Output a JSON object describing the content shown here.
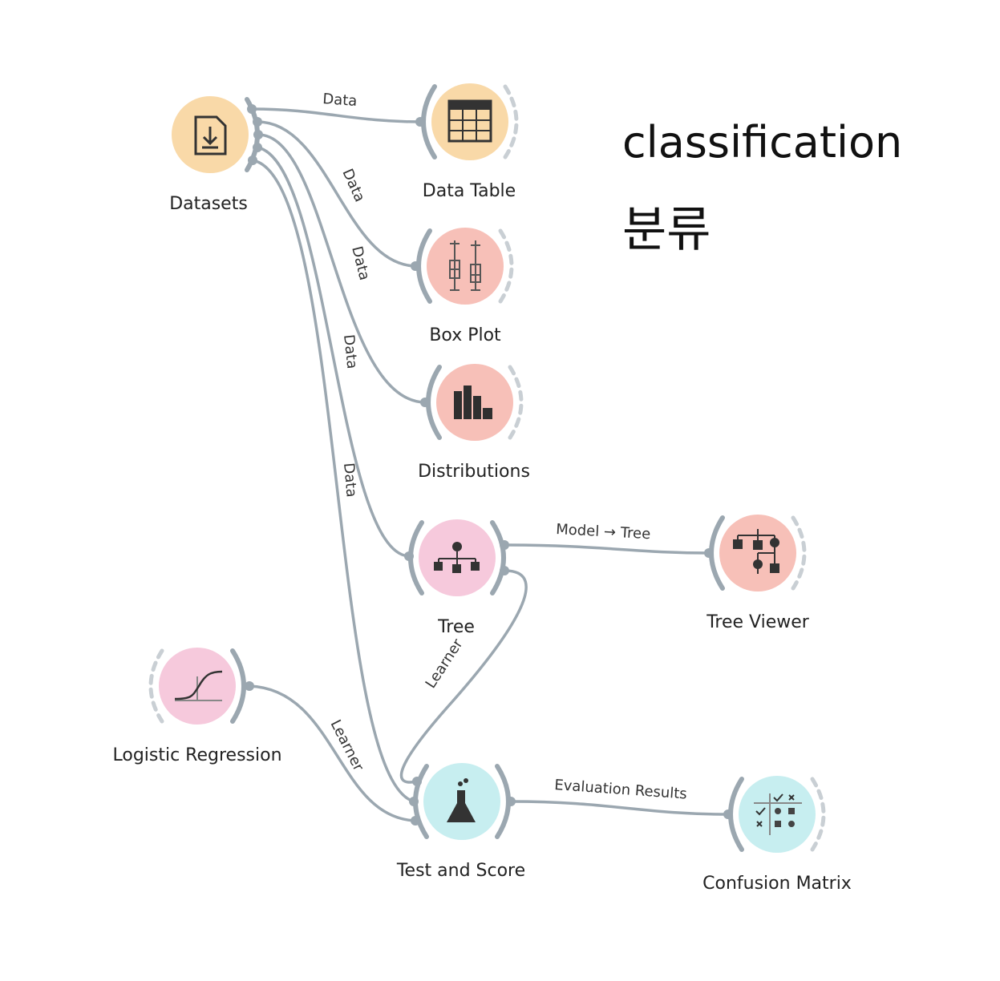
{
  "annotation": {
    "title": "classification",
    "subtitle": "분류"
  },
  "nodes": {
    "datasets": {
      "label": "Datasets",
      "color": "#f9d9a8",
      "icon": "file-download-icon"
    },
    "data_table": {
      "label": "Data Table",
      "color": "#f9d9a8",
      "icon": "table-grid-icon"
    },
    "box_plot": {
      "label": "Box Plot",
      "color": "#f7c0b8",
      "icon": "box-plot-icon"
    },
    "distributions": {
      "label": "Distributions",
      "color": "#f7c0b8",
      "icon": "bar-chart-icon"
    },
    "tree": {
      "label": "Tree",
      "color": "#f6c9dc",
      "icon": "hierarchy-icon"
    },
    "tree_viewer": {
      "label": "Tree Viewer",
      "color": "#f7c0b8",
      "icon": "tree-graph-icon"
    },
    "logistic_regression": {
      "label": "Logistic Regression",
      "color": "#f6c9dc",
      "icon": "sigmoid-curve-icon"
    },
    "test_and_score": {
      "label": "Test and Score",
      "color": "#c7eef0",
      "icon": "flask-icon"
    },
    "confusion_matrix": {
      "label": "Confusion Matrix",
      "color": "#c7eef0",
      "icon": "matrix-icon"
    }
  },
  "links": {
    "data_table": "Data",
    "box_plot": "Data",
    "distributions": "Data",
    "tree": "Data",
    "test_and_score": "Data",
    "tree_viewer": "Model → Tree",
    "tree_learner": "Learner",
    "lr_learner": "Learner",
    "evaluation": "Evaluation Results"
  },
  "colors": {
    "link": "#9ba7b0",
    "icon_dark": "#333333"
  }
}
